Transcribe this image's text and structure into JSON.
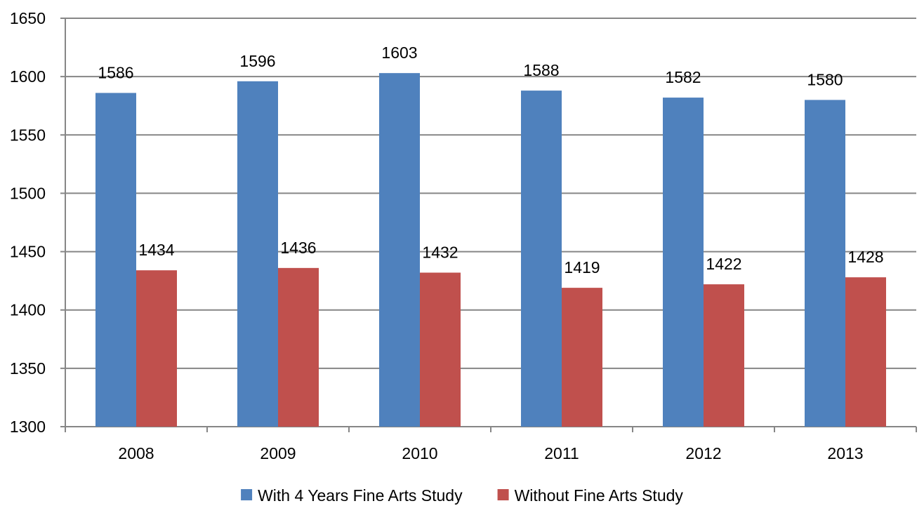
{
  "chart_data": {
    "type": "bar",
    "title": "",
    "xlabel": "",
    "ylabel": "",
    "categories": [
      "2008",
      "2009",
      "2010",
      "2011",
      "2012",
      "2013"
    ],
    "series": [
      {
        "name": "With 4 Years Fine Arts Study",
        "color": "#4F81BD",
        "values": [
          1586,
          1596,
          1603,
          1588,
          1582,
          1580
        ]
      },
      {
        "name": "Without Fine Arts Study",
        "color": "#C0504D",
        "values": [
          1434,
          1436,
          1432,
          1419,
          1422,
          1428
        ]
      }
    ],
    "ylim": [
      1300,
      1650
    ],
    "yticks": [
      1300,
      1350,
      1400,
      1450,
      1500,
      1550,
      1600,
      1650
    ],
    "grid": true,
    "data_labels": true,
    "legend_position": "bottom"
  }
}
